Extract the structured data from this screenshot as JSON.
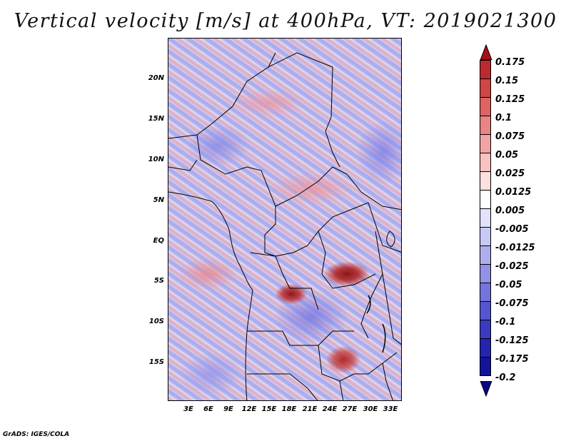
{
  "title": "Vertical velocity [m/s] at 400hPa, VT: 2019021300",
  "footer": "GrADS: IGES/COLA",
  "map": {
    "lat_ticks": [
      "20N",
      "15N",
      "10N",
      "5N",
      "EQ",
      "5S",
      "10S",
      "15S"
    ],
    "lon_ticks": [
      "3E",
      "6E",
      "9E",
      "12E",
      "15E",
      "18E",
      "21E",
      "24E",
      "27E",
      "30E",
      "33E"
    ]
  },
  "colorbar": {
    "labels": [
      "0.175",
      "0.15",
      "0.125",
      "0.1",
      "0.075",
      "0.05",
      "0.025",
      "0.0125",
      "0.005",
      "-0.005",
      "-0.0125",
      "-0.025",
      "-0.05",
      "-0.075",
      "-0.1",
      "-0.125",
      "-0.175",
      "-0.2"
    ],
    "colors": [
      "#a50f15",
      "#bc2a2f",
      "#d04545",
      "#de6464",
      "#e98484",
      "#f2a3a3",
      "#f8c2c2",
      "#fcdfdf",
      "#ffffff",
      "#e2e2fb",
      "#c9c9f5",
      "#aeaeee",
      "#9191e6",
      "#7474dd",
      "#5555d2",
      "#3a3ac3",
      "#2424b0",
      "#14149a",
      "#0a0a85"
    ]
  },
  "colors": {
    "positive": "#a50f15",
    "negative": "#14149a",
    "boundary": "#000000"
  }
}
